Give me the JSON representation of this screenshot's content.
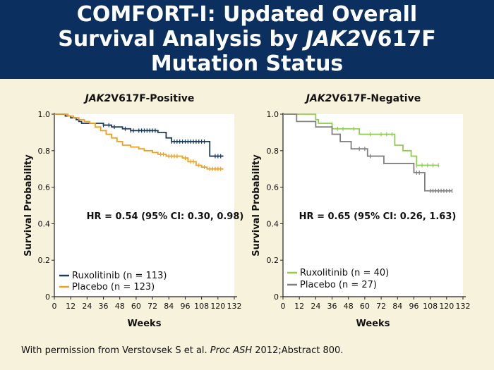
{
  "slide": {
    "title_line1": "COMFORT-I: Updated Overall",
    "title_line2_a": "Survival Analysis by ",
    "title_line2_b": "JAK2",
    "title_line2_c": "V617F",
    "title_line3": "Mutation Status",
    "credit_a": "With permission from Verstovsek S et al. ",
    "credit_b": "Proc ASH",
    "credit_c": " 2012;Abstract 800."
  },
  "colors": {
    "header_bg": "#0b3060",
    "background": "#f6f2dc",
    "ruxolitinib_pos": "#1b3a5c",
    "placebo_pos": "#f0a020",
    "ruxolitinib_neg": "#90cc50",
    "placebo_neg": "#808080"
  },
  "chart_data": [
    {
      "type": "line",
      "subtype": "kaplan-meier",
      "title_a": "JAK2",
      "title_b": "V617F-Positive",
      "xlabel": "Weeks",
      "ylabel": "Survival Probability",
      "xlim": [
        0,
        132
      ],
      "ylim": [
        0,
        1.0
      ],
      "xticks": [
        0,
        12,
        24,
        36,
        48,
        60,
        72,
        84,
        96,
        108,
        120,
        132
      ],
      "yticks": [
        0,
        0.2,
        0.4,
        0.6,
        0.8,
        1.0
      ],
      "ytick_labels": [
        "0",
        "0.2",
        "0.4",
        "0.6",
        "0.8",
        "1.0"
      ],
      "annotation": "HR = 0.54 (95% CI: 0.30, 0.98)",
      "legend_position": "bottom-left",
      "series": [
        {
          "name": "Ruxolitinib (n = 113)",
          "color": "#1b3a5c",
          "steps": [
            [
              0,
              1.0
            ],
            [
              8,
              0.99
            ],
            [
              12,
              0.98
            ],
            [
              16,
              0.97
            ],
            [
              18,
              0.96
            ],
            [
              20,
              0.95
            ],
            [
              36,
              0.94
            ],
            [
              42,
              0.93
            ],
            [
              50,
              0.92
            ],
            [
              56,
              0.91
            ],
            [
              66,
              0.91
            ],
            [
              76,
              0.9
            ],
            [
              82,
              0.87
            ],
            [
              86,
              0.85
            ],
            [
              112,
              0.85
            ],
            [
              114,
              0.77
            ],
            [
              124,
              0.77
            ]
          ],
          "censor_x": [
            36,
            40,
            44,
            52,
            56,
            58,
            62,
            64,
            66,
            68,
            70,
            72,
            74,
            86,
            88,
            90,
            92,
            94,
            96,
            98,
            100,
            102,
            104,
            106,
            108,
            110,
            118,
            120,
            122
          ]
        },
        {
          "name": "Placebo (n = 123)",
          "color": "#f0a020",
          "steps": [
            [
              0,
              1.0
            ],
            [
              10,
              0.99
            ],
            [
              14,
              0.98
            ],
            [
              18,
              0.97
            ],
            [
              22,
              0.96
            ],
            [
              26,
              0.95
            ],
            [
              30,
              0.93
            ],
            [
              34,
              0.91
            ],
            [
              38,
              0.89
            ],
            [
              42,
              0.87
            ],
            [
              46,
              0.85
            ],
            [
              50,
              0.83
            ],
            [
              56,
              0.82
            ],
            [
              62,
              0.81
            ],
            [
              66,
              0.8
            ],
            [
              72,
              0.79
            ],
            [
              76,
              0.78
            ],
            [
              82,
              0.77
            ],
            [
              94,
              0.76
            ],
            [
              98,
              0.74
            ],
            [
              104,
              0.72
            ],
            [
              108,
              0.71
            ],
            [
              112,
              0.7
            ],
            [
              124,
              0.7
            ]
          ],
          "censor_x": [
            78,
            80,
            84,
            86,
            88,
            90,
            96,
            100,
            102,
            106,
            110,
            114,
            116,
            118,
            120,
            122
          ]
        }
      ]
    },
    {
      "type": "line",
      "subtype": "kaplan-meier",
      "title_a": "JAK2",
      "title_b": "V617F-Negative",
      "xlabel": "Weeks",
      "ylabel": "Survival Probability",
      "xlim": [
        0,
        132
      ],
      "ylim": [
        0,
        1.0
      ],
      "xticks": [
        0,
        12,
        24,
        36,
        48,
        60,
        72,
        84,
        96,
        108,
        120,
        132
      ],
      "yticks": [
        0,
        0.2,
        0.4,
        0.6,
        0.8,
        1.0
      ],
      "ytick_labels": [
        "0",
        "0.2",
        "0.4",
        "0.6",
        "0.8",
        "1.0"
      ],
      "annotation": "HR = 0.65 (95% CI: 0.26, 1.63)",
      "legend_position": "bottom-left",
      "series": [
        {
          "name": "Ruxolitinib (n = 40)",
          "color": "#90cc50",
          "steps": [
            [
              0,
              1.0
            ],
            [
              24,
              0.97
            ],
            [
              26,
              0.95
            ],
            [
              36,
              0.92
            ],
            [
              56,
              0.89
            ],
            [
              82,
              0.83
            ],
            [
              88,
              0.8
            ],
            [
              94,
              0.77
            ],
            [
              98,
              0.72
            ],
            [
              114,
              0.72
            ]
          ],
          "censor_x": [
            40,
            44,
            52,
            64,
            72,
            76,
            80,
            98,
            102,
            106,
            110,
            114
          ]
        },
        {
          "name": "Placebo (n = 27)",
          "color": "#808080",
          "steps": [
            [
              0,
              1.0
            ],
            [
              10,
              0.96
            ],
            [
              24,
              0.93
            ],
            [
              36,
              0.89
            ],
            [
              42,
              0.85
            ],
            [
              50,
              0.81
            ],
            [
              62,
              0.77
            ],
            [
              74,
              0.73
            ],
            [
              96,
              0.68
            ],
            [
              104,
              0.58
            ],
            [
              124,
              0.58
            ]
          ],
          "censor_x": [
            56,
            60,
            64,
            98,
            100,
            108,
            110,
            112,
            114,
            116,
            118,
            120,
            122,
            124
          ]
        }
      ]
    }
  ]
}
